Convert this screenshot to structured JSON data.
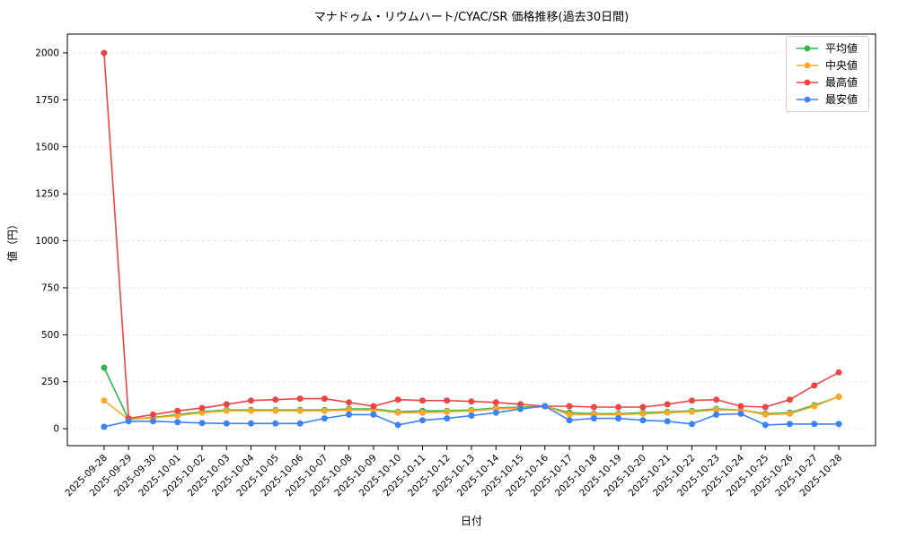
{
  "chart_data": {
    "type": "line",
    "title": "マナドゥム・リウムハート/CYAC/SR 価格推移(過去30日間)",
    "xlabel": "日付",
    "ylabel": "値（円）",
    "ylim": [
      0,
      2000
    ],
    "yticks": [
      0,
      250,
      500,
      750,
      1000,
      1250,
      1500,
      1750,
      2000
    ],
    "grid": true,
    "legend_position": "upper right",
    "categories": [
      "2025-09-28",
      "2025-09-29",
      "2025-09-30",
      "2025-10-01",
      "2025-10-02",
      "2025-10-03",
      "2025-10-04",
      "2025-10-05",
      "2025-10-06",
      "2025-10-07",
      "2025-10-08",
      "2025-10-09",
      "2025-10-10",
      "2025-10-11",
      "2025-10-12",
      "2025-10-13",
      "2025-10-14",
      "2025-10-15",
      "2025-10-16",
      "2025-10-17",
      "2025-10-18",
      "2025-10-19",
      "2025-10-20",
      "2025-10-21",
      "2025-10-22",
      "2025-10-23",
      "2025-10-24",
      "2025-10-25",
      "2025-10-26",
      "2025-10-27",
      "2025-10-28"
    ],
    "series": [
      {
        "id": "avg",
        "name": "平均値",
        "color": "#2eb84b",
        "values": [
          325,
          50,
          60,
          75,
          90,
          100,
          100,
          100,
          100,
          100,
          105,
          105,
          90,
          95,
          95,
          100,
          110,
          115,
          120,
          85,
          80,
          80,
          85,
          90,
          95,
          105,
          100,
          80,
          85,
          125,
          170
        ]
      },
      {
        "id": "median",
        "name": "中央値",
        "color": "#ffa726",
        "values": [
          150,
          50,
          58,
          70,
          85,
          95,
          95,
          95,
          95,
          95,
          100,
          100,
          85,
          85,
          90,
          95,
          105,
          110,
          120,
          75,
          75,
          75,
          80,
          85,
          90,
          100,
          100,
          75,
          80,
          120,
          170
        ]
      },
      {
        "id": "max",
        "name": "最高値",
        "color": "#ef4444",
        "values": [
          2000,
          55,
          75,
          95,
          110,
          130,
          150,
          155,
          160,
          160,
          140,
          120,
          155,
          150,
          150,
          145,
          140,
          130,
          120,
          120,
          115,
          115,
          115,
          130,
          150,
          155,
          120,
          115,
          155,
          230,
          300
        ]
      },
      {
        "id": "min",
        "name": "最安値",
        "color": "#3b82f6",
        "values": [
          10,
          40,
          40,
          35,
          30,
          28,
          28,
          28,
          28,
          55,
          75,
          75,
          20,
          45,
          55,
          70,
          85,
          105,
          120,
          45,
          55,
          55,
          45,
          40,
          25,
          75,
          80,
          20,
          25,
          25,
          25
        ]
      }
    ]
  }
}
